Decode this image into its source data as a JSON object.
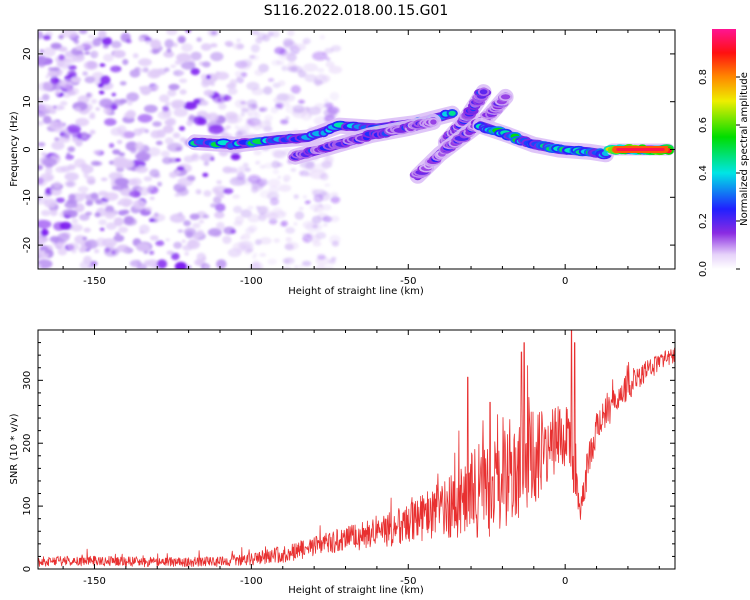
{
  "figure_title": "S116.2022.018.00.15.G01",
  "colors": {
    "snr_line": "#e83030",
    "axes": "#000000",
    "speckle_light": "#e0cbf8",
    "speckle_mid": "#b58cf0",
    "speckle_dark": "#7d1ff0"
  },
  "chart_data": [
    {
      "type": "heatmap",
      "title": "S116.2022.018.00.15.G01",
      "xlabel": "Height of straight line (km)",
      "ylabel": "Frequency (Hz)",
      "xlim": [
        -168,
        35
      ],
      "ylim": [
        -25,
        25
      ],
      "xticks": [
        -150,
        -100,
        -50,
        0
      ],
      "yticks": [
        -20,
        -10,
        0,
        10,
        20
      ],
      "xtick_labels": [
        "-150",
        "-100",
        "-50",
        "0"
      ],
      "ytick_labels": [
        "-20",
        "-10",
        "0",
        "10",
        "20"
      ],
      "colorbar": {
        "label": "Normalized spectral amplitude",
        "range": [
          0,
          1
        ],
        "ticks": [
          0.0,
          0.2,
          0.4,
          0.6,
          0.8
        ],
        "tick_labels": [
          "0.0",
          "0.2",
          "0.4",
          "0.6",
          "0.8"
        ],
        "stops": [
          {
            "v": 0.0,
            "color": "#ffffff"
          },
          {
            "v": 0.06,
            "color": "#e6d2fa"
          },
          {
            "v": 0.15,
            "color": "#8a2be2"
          },
          {
            "v": 0.25,
            "color": "#2020ff"
          },
          {
            "v": 0.4,
            "color": "#00e5e5"
          },
          {
            "v": 0.55,
            "color": "#00dd00"
          },
          {
            "v": 0.7,
            "color": "#eeee00"
          },
          {
            "v": 0.8,
            "color": "#ff8800"
          },
          {
            "v": 0.9,
            "color": "#ff1010"
          },
          {
            "v": 1.0,
            "color": "#ff1493"
          }
        ]
      },
      "ridges": [
        {
          "name": "main-ridge",
          "points": [
            [
              -118,
              1.5
            ],
            [
              -105,
              1.0
            ],
            [
              -92,
              2.0
            ],
            [
              -82,
              2.5
            ],
            [
              -72,
              5.0
            ],
            [
              -60,
              4.5
            ],
            [
              -48,
              5.5
            ],
            [
              -36,
              7.5
            ]
          ],
          "amplitude": 0.45
        },
        {
          "name": "lower-ridge",
          "points": [
            [
              -86,
              -1.5
            ],
            [
              -75,
              0.5
            ],
            [
              -62,
              3.0
            ],
            [
              -50,
              4.5
            ],
            [
              -42,
              5.8
            ]
          ],
          "amplitude": 0.25
        },
        {
          "name": "upper-diagonal",
          "points": [
            [
              -38,
              1.5
            ],
            [
              -32,
              6.0
            ],
            [
              -26,
              12.0
            ]
          ],
          "amplitude": 0.25
        },
        {
          "name": "steep-diagonal",
          "points": [
            [
              -47,
              -5.5
            ],
            [
              -40,
              -1.0
            ],
            [
              -33,
              2.5
            ],
            [
              -25,
              6.5
            ],
            [
              -19,
              11.0
            ]
          ],
          "amplitude": 0.22
        },
        {
          "name": "descending-ridge",
          "points": [
            [
              -27,
              5.0
            ],
            [
              -18,
              3.0
            ],
            [
              -10,
              1.0
            ],
            [
              -2,
              0.0
            ],
            [
              8,
              -0.5
            ],
            [
              13,
              -1.0
            ]
          ],
          "amplitude": 0.5
        },
        {
          "name": "final-ridge",
          "points": [
            [
              15,
              0.0
            ],
            [
              33,
              0.0
            ]
          ],
          "amplitude": 0.92
        }
      ]
    },
    {
      "type": "line",
      "xlabel": "Height of straight line (km)",
      "ylabel": "SNR (10 * v/v)",
      "xlim": [
        -168,
        35
      ],
      "ylim": [
        0,
        380
      ],
      "xticks": [
        -150,
        -100,
        -50,
        0
      ],
      "yticks": [
        0,
        100,
        200,
        300
      ],
      "xtick_labels": [
        "-150",
        "-100",
        "-50",
        "0"
      ],
      "ytick_labels": [
        "0",
        "100",
        "200",
        "300"
      ],
      "series": [
        {
          "name": "SNR",
          "x": [
            -168,
            -150,
            -130,
            -110,
            -100,
            -95,
            -90,
            -85,
            -80,
            -75,
            -70,
            -65,
            -60,
            -55,
            -50,
            -45,
            -40,
            -35,
            -30,
            -25,
            -20,
            -15,
            -10,
            -5,
            -2,
            0,
            1,
            3,
            5,
            7,
            10,
            15,
            20,
            25,
            30,
            35
          ],
          "mean": [
            12,
            13,
            11,
            12,
            16,
            20,
            24,
            30,
            36,
            42,
            47,
            52,
            58,
            64,
            72,
            82,
            92,
            105,
            118,
            130,
            145,
            160,
            175,
            195,
            210,
            220,
            225,
            150,
            90,
            160,
            230,
            260,
            290,
            310,
            330,
            340
          ],
          "spread": [
            8,
            8,
            8,
            8,
            10,
            12,
            14,
            15,
            16,
            18,
            20,
            22,
            25,
            28,
            32,
            38,
            45,
            55,
            70,
            80,
            85,
            90,
            80,
            60,
            50,
            60,
            90,
            40,
            20,
            30,
            30,
            25,
            22,
            18,
            15,
            12
          ],
          "peaks": [
            [
              -31,
              305
            ],
            [
              -24,
              265
            ],
            [
              -14,
              345
            ],
            [
              -13,
              360
            ],
            [
              2,
              380
            ],
            [
              3,
              360
            ]
          ]
        }
      ]
    }
  ]
}
